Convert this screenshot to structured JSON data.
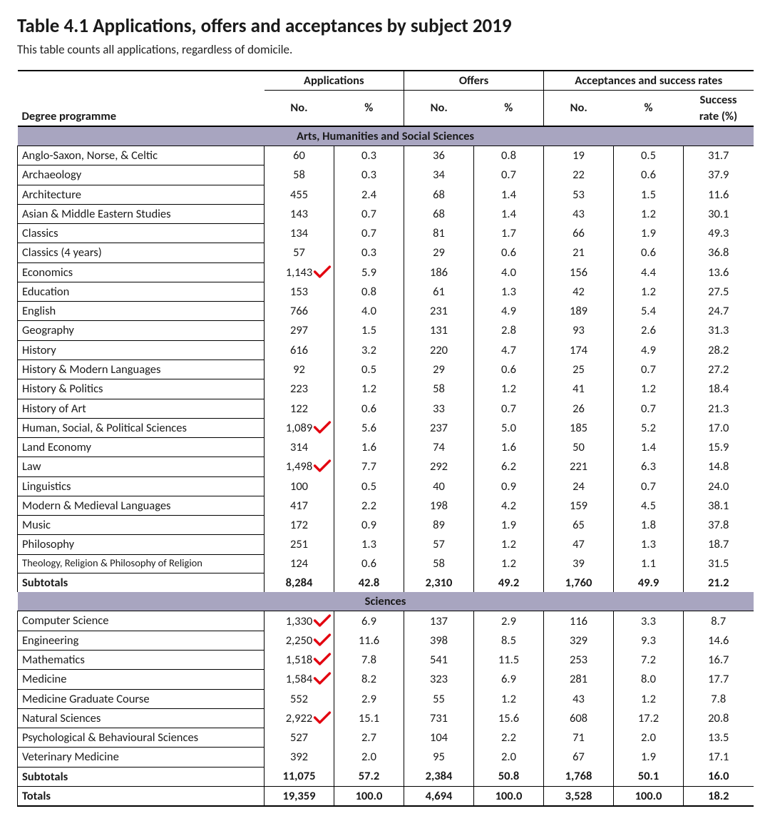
{
  "title": "Table 4.1 Applications, offers and acceptances by subject 2019",
  "subtitle": "This table counts all applications, regardless of domicile.",
  "colors": {
    "section_header_bg": "#a8a5c0",
    "annotation_red": "#e3000f",
    "text": "#1a1a1a",
    "border": "#000000",
    "background": "#ffffff"
  },
  "headers": {
    "applications": "Applications",
    "offers": "Offers",
    "acceptances": "Acceptances and success rates",
    "degree_programme": "Degree programme",
    "no": "No.",
    "pct": "%",
    "success": "Success",
    "success_rate": "rate (%)"
  },
  "sections": [
    {
      "title": "Arts, Humanities and Social Sciences",
      "rows": [
        {
          "name": "Anglo-Saxon, Norse, & Celtic",
          "app_no": "60",
          "app_pct": "0.3",
          "off_no": "36",
          "off_pct": "0.8",
          "acc_no": "19",
          "acc_pct": "0.5",
          "succ": "31.7",
          "check": false
        },
        {
          "name": "Archaeology",
          "app_no": "58",
          "app_pct": "0.3",
          "off_no": "34",
          "off_pct": "0.7",
          "acc_no": "22",
          "acc_pct": "0.6",
          "succ": "37.9",
          "check": false
        },
        {
          "name": "Architecture",
          "app_no": "455",
          "app_pct": "2.4",
          "off_no": "68",
          "off_pct": "1.4",
          "acc_no": "53",
          "acc_pct": "1.5",
          "succ": "11.6",
          "check": false
        },
        {
          "name": "Asian & Middle Eastern Studies",
          "app_no": "143",
          "app_pct": "0.7",
          "off_no": "68",
          "off_pct": "1.4",
          "acc_no": "43",
          "acc_pct": "1.2",
          "succ": "30.1",
          "check": false
        },
        {
          "name": "Classics",
          "app_no": "134",
          "app_pct": "0.7",
          "off_no": "81",
          "off_pct": "1.7",
          "acc_no": "66",
          "acc_pct": "1.9",
          "succ": "49.3",
          "check": false
        },
        {
          "name": "Classics (4 years)",
          "app_no": "57",
          "app_pct": "0.3",
          "off_no": "29",
          "off_pct": "0.6",
          "acc_no": "21",
          "acc_pct": "0.6",
          "succ": "36.8",
          "check": false
        },
        {
          "name": "Economics",
          "app_no": "1,143",
          "app_pct": "5.9",
          "off_no": "186",
          "off_pct": "4.0",
          "acc_no": "156",
          "acc_pct": "4.4",
          "succ": "13.6",
          "check": true
        },
        {
          "name": "Education",
          "app_no": "153",
          "app_pct": "0.8",
          "off_no": "61",
          "off_pct": "1.3",
          "acc_no": "42",
          "acc_pct": "1.2",
          "succ": "27.5",
          "check": false
        },
        {
          "name": "English",
          "app_no": "766",
          "app_pct": "4.0",
          "off_no": "231",
          "off_pct": "4.9",
          "acc_no": "189",
          "acc_pct": "5.4",
          "succ": "24.7",
          "check": false
        },
        {
          "name": "Geography",
          "app_no": "297",
          "app_pct": "1.5",
          "off_no": "131",
          "off_pct": "2.8",
          "acc_no": "93",
          "acc_pct": "2.6",
          "succ": "31.3",
          "check": false
        },
        {
          "name": "History",
          "app_no": "616",
          "app_pct": "3.2",
          "off_no": "220",
          "off_pct": "4.7",
          "acc_no": "174",
          "acc_pct": "4.9",
          "succ": "28.2",
          "check": false
        },
        {
          "name": "History & Modern Languages",
          "app_no": "92",
          "app_pct": "0.5",
          "off_no": "29",
          "off_pct": "0.6",
          "acc_no": "25",
          "acc_pct": "0.7",
          "succ": "27.2",
          "check": false
        },
        {
          "name": "History & Politics",
          "app_no": "223",
          "app_pct": "1.2",
          "off_no": "58",
          "off_pct": "1.2",
          "acc_no": "41",
          "acc_pct": "1.2",
          "succ": "18.4",
          "check": false
        },
        {
          "name": "History of Art",
          "app_no": "122",
          "app_pct": "0.6",
          "off_no": "33",
          "off_pct": "0.7",
          "acc_no": "26",
          "acc_pct": "0.7",
          "succ": "21.3",
          "check": false
        },
        {
          "name": "Human, Social, & Political Sciences",
          "app_no": "1,089",
          "app_pct": "5.6",
          "off_no": "237",
          "off_pct": "5.0",
          "acc_no": "185",
          "acc_pct": "5.2",
          "succ": "17.0",
          "check": true
        },
        {
          "name": "Land Economy",
          "app_no": "314",
          "app_pct": "1.6",
          "off_no": "74",
          "off_pct": "1.6",
          "acc_no": "50",
          "acc_pct": "1.4",
          "succ": "15.9",
          "check": false
        },
        {
          "name": "Law",
          "app_no": "1,498",
          "app_pct": "7.7",
          "off_no": "292",
          "off_pct": "6.2",
          "acc_no": "221",
          "acc_pct": "6.3",
          "succ": "14.8",
          "check": true
        },
        {
          "name": "Linguistics",
          "app_no": "100",
          "app_pct": "0.5",
          "off_no": "40",
          "off_pct": "0.9",
          "acc_no": "24",
          "acc_pct": "0.7",
          "succ": "24.0",
          "check": false
        },
        {
          "name": "Modern & Medieval Languages",
          "app_no": "417",
          "app_pct": "2.2",
          "off_no": "198",
          "off_pct": "4.2",
          "acc_no": "159",
          "acc_pct": "4.5",
          "succ": "38.1",
          "check": false
        },
        {
          "name": "Music",
          "app_no": "172",
          "app_pct": "0.9",
          "off_no": "89",
          "off_pct": "1.9",
          "acc_no": "65",
          "acc_pct": "1.8",
          "succ": "37.8",
          "check": false
        },
        {
          "name": "Philosophy",
          "app_no": "251",
          "app_pct": "1.3",
          "off_no": "57",
          "off_pct": "1.2",
          "acc_no": "47",
          "acc_pct": "1.3",
          "succ": "18.7",
          "check": false
        },
        {
          "name": "Theology, Religion & Philosophy of Religion",
          "app_no": "124",
          "app_pct": "0.6",
          "off_no": "58",
          "off_pct": "1.2",
          "acc_no": "39",
          "acc_pct": "1.1",
          "succ": "31.5",
          "check": false,
          "small": true
        }
      ],
      "subtotal": {
        "name": "Subtotals",
        "app_no": "8,284",
        "app_pct": "42.8",
        "off_no": "2,310",
        "off_pct": "49.2",
        "acc_no": "1,760",
        "acc_pct": "49.9",
        "succ": "21.2"
      }
    },
    {
      "title": "Sciences",
      "rows": [
        {
          "name": "Computer Science",
          "app_no": "1,330",
          "app_pct": "6.9",
          "off_no": "137",
          "off_pct": "2.9",
          "acc_no": "116",
          "acc_pct": "3.3",
          "succ": "8.7",
          "check": true
        },
        {
          "name": "Engineering",
          "app_no": "2,250",
          "app_pct": "11.6",
          "off_no": "398",
          "off_pct": "8.5",
          "acc_no": "329",
          "acc_pct": "9.3",
          "succ": "14.6",
          "check": true
        },
        {
          "name": "Mathematics",
          "app_no": "1,518",
          "app_pct": "7.8",
          "off_no": "541",
          "off_pct": "11.5",
          "acc_no": "253",
          "acc_pct": "7.2",
          "succ": "16.7",
          "check": true
        },
        {
          "name": "Medicine",
          "app_no": "1,584",
          "app_pct": "8.2",
          "off_no": "323",
          "off_pct": "6.9",
          "acc_no": "281",
          "acc_pct": "8.0",
          "succ": "17.7",
          "check": true
        },
        {
          "name": "Medicine Graduate Course",
          "app_no": "552",
          "app_pct": "2.9",
          "off_no": "55",
          "off_pct": "1.2",
          "acc_no": "43",
          "acc_pct": "1.2",
          "succ": "7.8",
          "check": false
        },
        {
          "name": "Natural Sciences",
          "app_no": "2,922",
          "app_pct": "15.1",
          "off_no": "731",
          "off_pct": "15.6",
          "acc_no": "608",
          "acc_pct": "17.2",
          "succ": "20.8",
          "check": true
        },
        {
          "name": "Psychological & Behavioural Sciences",
          "app_no": "527",
          "app_pct": "2.7",
          "off_no": "104",
          "off_pct": "2.2",
          "acc_no": "71",
          "acc_pct": "2.0",
          "succ": "13.5",
          "check": false
        },
        {
          "name": "Veterinary Medicine",
          "app_no": "392",
          "app_pct": "2.0",
          "off_no": "95",
          "off_pct": "2.0",
          "acc_no": "67",
          "acc_pct": "1.9",
          "succ": "17.1",
          "check": false
        }
      ],
      "subtotal": {
        "name": "Subtotals",
        "app_no": "11,075",
        "app_pct": "57.2",
        "off_no": "2,384",
        "off_pct": "50.8",
        "acc_no": "1,768",
        "acc_pct": "50.1",
        "succ": "16.0"
      }
    }
  ],
  "total": {
    "name": "Totals",
    "app_no": "19,359",
    "app_pct": "100.0",
    "off_no": "4,694",
    "off_pct": "100.0",
    "acc_no": "3,528",
    "acc_pct": "100.0",
    "succ": "18.2"
  }
}
